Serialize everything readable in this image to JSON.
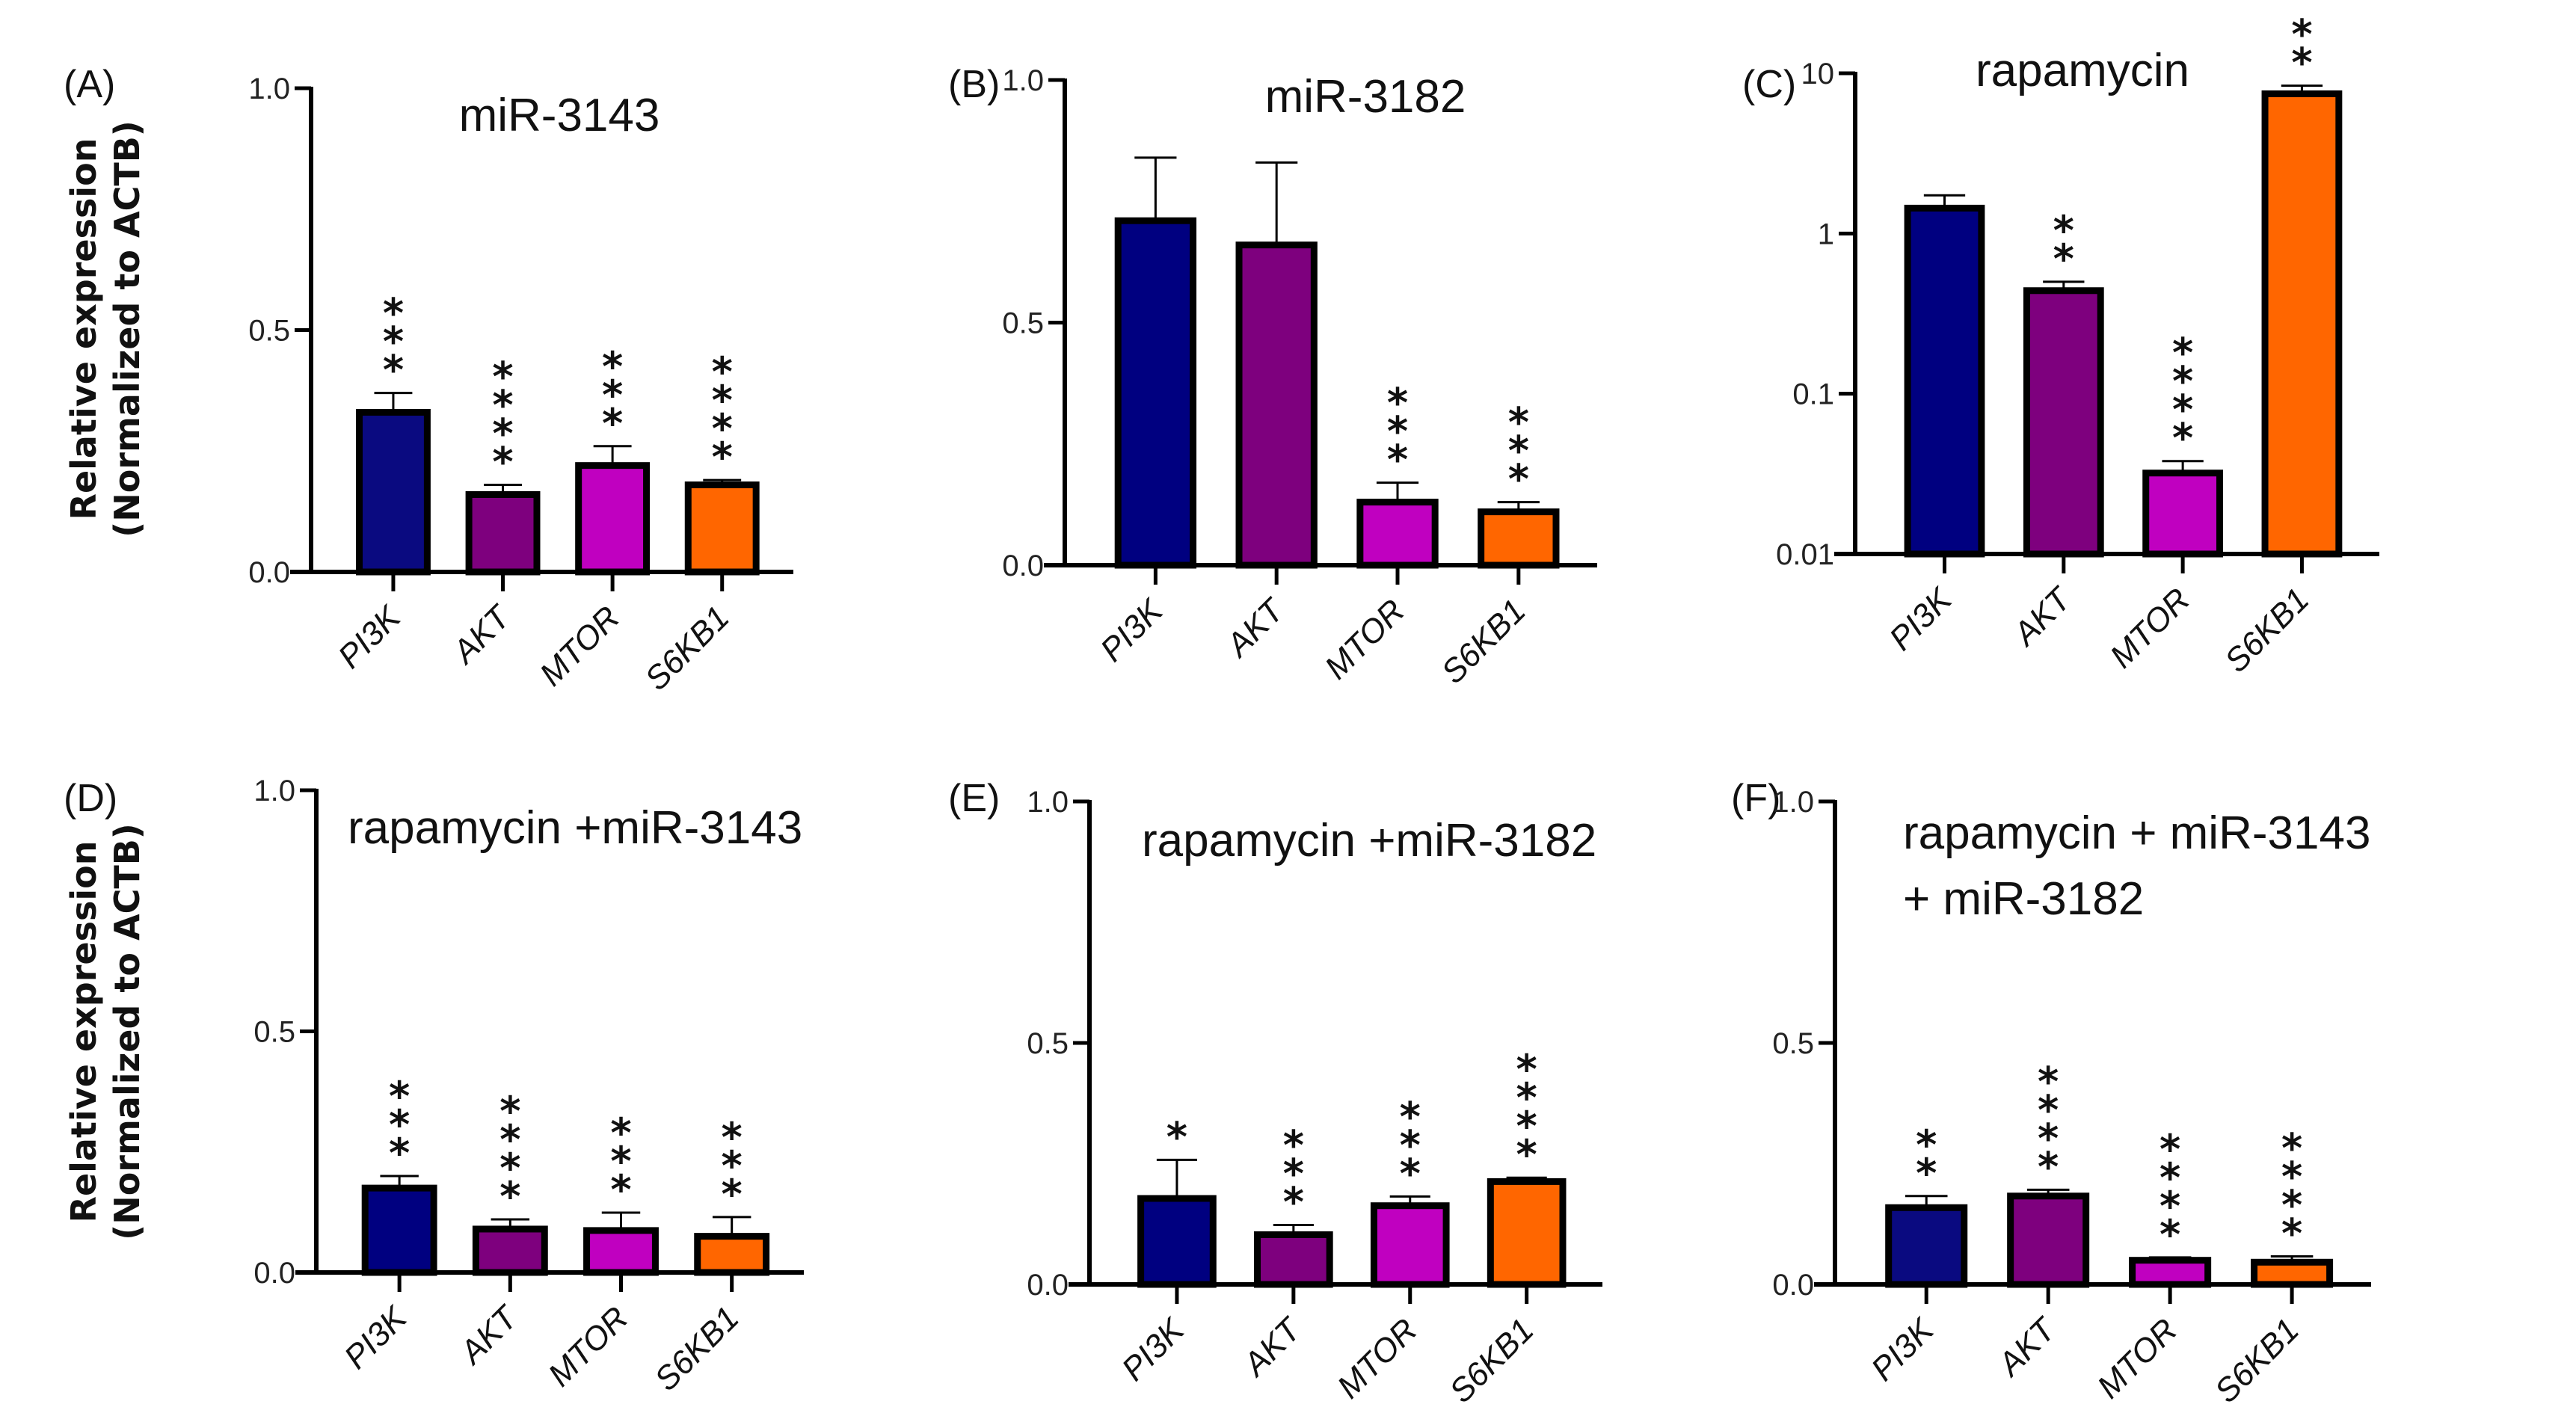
{
  "figure": {
    "ylabel_line1": "Relative expression",
    "ylabel_line2": "(Normalized to ACTB)"
  },
  "chart_data": [
    {
      "panel": "(A)",
      "type": "bar",
      "title": "miR-3143",
      "xlabel": "",
      "ylabel": "Relative expression (Normalized to ACTB)",
      "yscale": "linear",
      "ylim": [
        0,
        1.0
      ],
      "yticks": [
        0.0,
        0.5,
        1.0
      ],
      "ytick_labels": [
        "0.0",
        "0.5",
        "1.0"
      ],
      "categories": [
        "PI3K",
        "AKT",
        "MTOR",
        "S6KB1"
      ],
      "values": [
        0.33,
        0.16,
        0.22,
        0.18
      ],
      "error_upper": [
        0.37,
        0.18,
        0.26,
        0.19
      ],
      "significance": [
        "***",
        "****",
        "***",
        "****"
      ],
      "colors": [
        "#0a0a80",
        "#7e007e",
        "#c000c0",
        "#ff6600"
      ],
      "grid": false,
      "legend": "none"
    },
    {
      "panel": "(B)",
      "type": "bar",
      "title": "miR-3182",
      "xlabel": "",
      "ylabel": "",
      "yscale": "linear",
      "ylim": [
        0,
        1.0
      ],
      "yticks": [
        0.0,
        0.5,
        1.0
      ],
      "ytick_labels": [
        "0.0",
        "0.5",
        "1.0"
      ],
      "categories": [
        "PI3K",
        "AKT",
        "MTOR",
        "S6KB1"
      ],
      "values": [
        0.71,
        0.66,
        0.13,
        0.11
      ],
      "error_upper": [
        0.84,
        0.83,
        0.17,
        0.13
      ],
      "significance": [
        "",
        "",
        "***",
        "***"
      ],
      "colors": [
        "#000080",
        "#7e007e",
        "#c000c0",
        "#ff6600"
      ],
      "grid": false,
      "legend": "none"
    },
    {
      "panel": "(C)",
      "type": "bar",
      "title": "rapamycin",
      "xlabel": "",
      "ylabel": "",
      "yscale": "log",
      "ylim": [
        0.01,
        10
      ],
      "yticks": [
        0.01,
        0.1,
        1,
        10
      ],
      "ytick_labels": [
        "0.01",
        "0.1",
        "1",
        "10"
      ],
      "categories": [
        "PI3K",
        "AKT",
        "MTOR",
        "S6KB1"
      ],
      "values": [
        1.44,
        0.44,
        0.032,
        7.45
      ],
      "error_upper": [
        1.73,
        0.5,
        0.038,
        8.36
      ],
      "significance": [
        "",
        "**",
        "****",
        "**"
      ],
      "colors": [
        "#000080",
        "#7e007e",
        "#c000c0",
        "#ff6600"
      ],
      "grid": false,
      "legend": "none"
    },
    {
      "panel": "(D)",
      "type": "bar",
      "title": "rapamycin +miR-3143",
      "xlabel": "",
      "ylabel": "Relative expression (Normalized to ACTB)",
      "yscale": "linear",
      "ylim": [
        0,
        1.0
      ],
      "yticks": [
        0.0,
        0.5,
        1.0
      ],
      "ytick_labels": [
        "0.0",
        "0.5",
        "1.0"
      ],
      "categories": [
        "PI3K",
        "AKT",
        "MTOR",
        "S6KB1"
      ],
      "values": [
        0.175,
        0.09,
        0.087,
        0.075
      ],
      "error_upper": [
        0.2,
        0.11,
        0.124,
        0.115
      ],
      "significance": [
        "***",
        "****",
        "***",
        "***"
      ],
      "colors": [
        "#000080",
        "#7e007e",
        "#c000c0",
        "#ff6600"
      ],
      "grid": false,
      "legend": "none"
    },
    {
      "panel": "(E)",
      "type": "bar",
      "title": "rapamycin +miR-3182",
      "xlabel": "",
      "ylabel": "",
      "yscale": "linear",
      "ylim": [
        0,
        1.0
      ],
      "yticks": [
        0.0,
        0.5,
        1.0
      ],
      "ytick_labels": [
        "0.0",
        "0.5",
        "1.0"
      ],
      "categories": [
        "PI3K",
        "AKT",
        "MTOR",
        "S6KB1"
      ],
      "values": [
        0.178,
        0.103,
        0.163,
        0.213
      ],
      "error_upper": [
        0.258,
        0.123,
        0.182,
        0.221
      ],
      "significance": [
        "*",
        "***",
        "***",
        "****"
      ],
      "colors": [
        "#000080",
        "#7e007e",
        "#c000c0",
        "#ff6600"
      ],
      "grid": false,
      "legend": "none"
    },
    {
      "panel": "(F)",
      "type": "bar",
      "title": "rapamycin + miR-3143",
      "title_line2": "+ miR-3182",
      "xlabel": "",
      "ylabel": "",
      "yscale": "linear",
      "ylim": [
        0,
        1.0
      ],
      "yticks": [
        0.0,
        0.5,
        1.0
      ],
      "ytick_labels": [
        "0.0",
        "0.5",
        "1.0"
      ],
      "categories": [
        "PI3K",
        "AKT",
        "MTOR",
        "S6KB1"
      ],
      "values": [
        0.159,
        0.183,
        0.05,
        0.046
      ],
      "error_upper": [
        0.183,
        0.196,
        0.056,
        0.058
      ],
      "significance": [
        "**",
        "****",
        "****",
        "****"
      ],
      "colors": [
        "#0a0a80",
        "#7e007e",
        "#c000c0",
        "#ff6600"
      ],
      "grid": false,
      "legend": "none"
    }
  ]
}
